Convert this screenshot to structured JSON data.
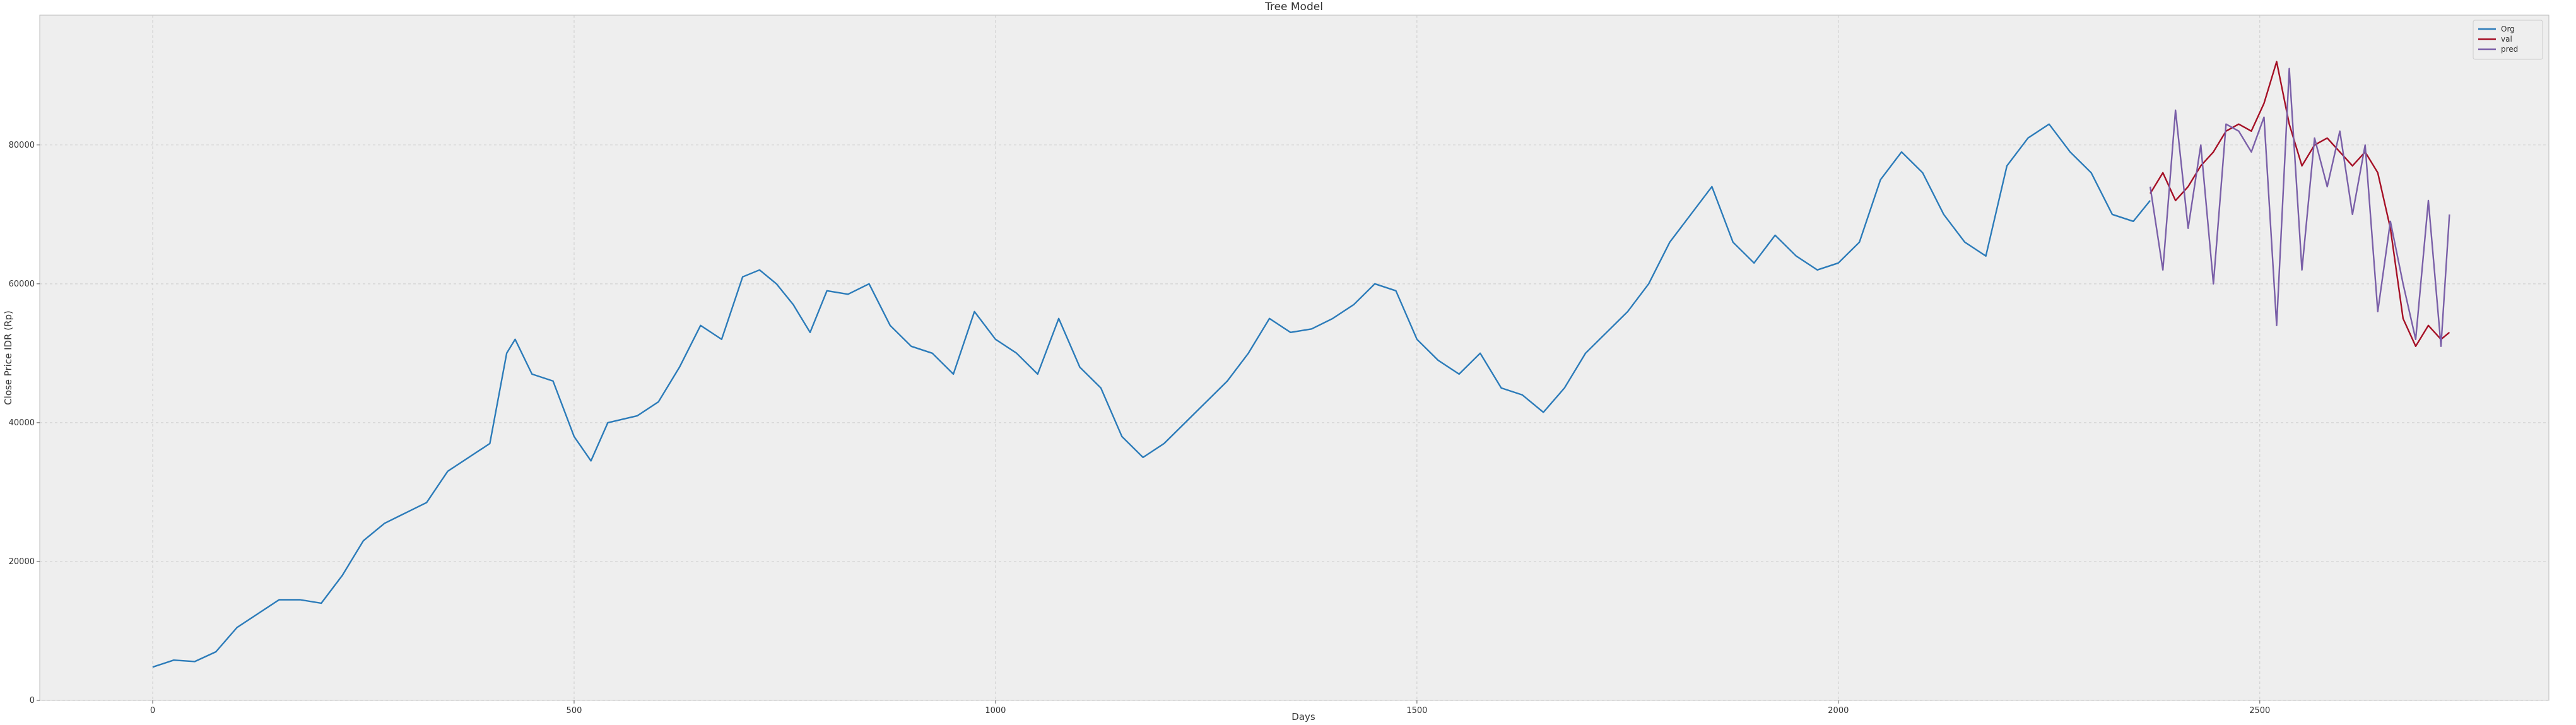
{
  "chart_data": {
    "type": "line",
    "title": "Tree Model",
    "x_label": "Days",
    "y_label": "Close Price IDR (Rp)",
    "xlim": [
      -134,
      2843
    ],
    "ylim": [
      0,
      98700
    ],
    "xticks": [
      0,
      500,
      1000,
      1500,
      2000,
      2500
    ],
    "yticks": [
      0,
      20000,
      40000,
      60000,
      80000
    ],
    "grid": true,
    "legend": "upper right",
    "series": [
      {
        "name": "Org",
        "color": "#2b7bb9",
        "x": [
          0,
          25,
          50,
          75,
          100,
          125,
          150,
          175,
          200,
          225,
          250,
          275,
          300,
          325,
          350,
          375,
          400,
          420,
          430,
          450,
          475,
          500,
          520,
          540,
          575,
          600,
          625,
          650,
          675,
          700,
          720,
          740,
          760,
          780,
          800,
          825,
          850,
          875,
          900,
          925,
          950,
          975,
          1000,
          1025,
          1050,
          1075,
          1100,
          1125,
          1150,
          1175,
          1200,
          1225,
          1250,
          1275,
          1300,
          1325,
          1350,
          1375,
          1400,
          1425,
          1450,
          1475,
          1500,
          1525,
          1550,
          1575,
          1600,
          1625,
          1650,
          1675,
          1700,
          1725,
          1750,
          1775,
          1800,
          1825,
          1850,
          1875,
          1900,
          1925,
          1950,
          1975,
          2000,
          2025,
          2050,
          2075,
          2100,
          2125,
          2150,
          2175,
          2200,
          2225,
          2250,
          2275,
          2300,
          2325,
          2350,
          2370
        ],
        "values": [
          4800,
          5800,
          5600,
          7000,
          10500,
          12500,
          14500,
          14500,
          14000,
          18000,
          23000,
          25500,
          27000,
          28500,
          33000,
          35000,
          37000,
          50000,
          52000,
          47000,
          46000,
          38000,
          34500,
          40000,
          41000,
          43000,
          48000,
          54000,
          52000,
          61000,
          62000,
          60000,
          57000,
          53000,
          59000,
          58500,
          60000,
          54000,
          51000,
          50000,
          47000,
          56000,
          52000,
          50000,
          47000,
          55000,
          48000,
          45000,
          38000,
          35000,
          37000,
          40000,
          43000,
          46000,
          50000,
          55000,
          53000,
          53500,
          55000,
          57000,
          60000,
          59000,
          52000,
          49000,
          47000,
          50000,
          45000,
          44000,
          41500,
          45000,
          50000,
          53000,
          56000,
          60000,
          66000,
          70000,
          74000,
          66000,
          63000,
          67000,
          64000,
          62000,
          63000,
          66000,
          75000,
          79000,
          76000,
          70000,
          66000,
          64000,
          77000,
          81000,
          83000,
          79000,
          76000,
          70000,
          69000,
          72000
        ]
      },
      {
        "name": "val",
        "color": "#a50f25",
        "x": [
          2370,
          2385,
          2400,
          2415,
          2430,
          2445,
          2460,
          2475,
          2490,
          2505,
          2520,
          2535,
          2550,
          2565,
          2580,
          2595,
          2610,
          2625,
          2640,
          2655,
          2670,
          2685,
          2700,
          2715,
          2725
        ],
        "values": [
          73000,
          76000,
          72000,
          74000,
          77000,
          79000,
          82000,
          83000,
          82000,
          86000,
          92000,
          83000,
          77000,
          80000,
          81000,
          79000,
          77000,
          79000,
          76000,
          68000,
          55000,
          51000,
          54000,
          52000,
          53000
        ]
      },
      {
        "name": "pred",
        "color": "#7a5fa8",
        "x": [
          2370,
          2385,
          2400,
          2415,
          2430,
          2445,
          2460,
          2475,
          2490,
          2505,
          2520,
          2535,
          2550,
          2565,
          2580,
          2595,
          2610,
          2625,
          2640,
          2655,
          2670,
          2685,
          2700,
          2715,
          2725
        ],
        "values": [
          74000,
          62000,
          85000,
          68000,
          80000,
          60000,
          83000,
          82000,
          79000,
          84000,
          54000,
          91000,
          62000,
          81000,
          74000,
          82000,
          70000,
          80000,
          56000,
          69000,
          60000,
          52000,
          72000,
          51000,
          70000
        ]
      }
    ]
  }
}
